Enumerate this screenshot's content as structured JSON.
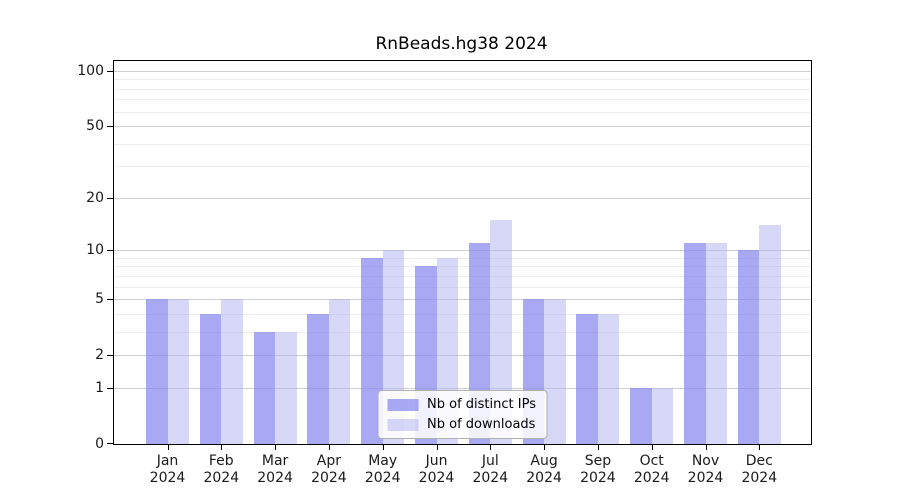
{
  "title": "RnBeads.hg38 2024",
  "chart_data": {
    "type": "bar",
    "title": "RnBeads.hg38 2024",
    "scale": "log10(1+x)",
    "grid": "horizontal",
    "legend_position": "lower center",
    "categories": [
      "Jan",
      "Feb",
      "Mar",
      "Apr",
      "May",
      "Jun",
      "Jul",
      "Aug",
      "Sep",
      "Oct",
      "Nov",
      "Dec"
    ],
    "year_label": "2024",
    "series": [
      {
        "name": "Nb of distinct IPs",
        "color": "#8686ee",
        "alpha": 0.72,
        "values": [
          5,
          4,
          3,
          4,
          9,
          8,
          11,
          5,
          4,
          1,
          11,
          10
        ]
      },
      {
        "name": "Nb of downloads",
        "color": "#b0b0f2",
        "alpha": 0.5,
        "values": [
          5,
          5,
          3,
          5,
          10,
          9,
          15,
          5,
          4,
          1,
          11,
          14
        ]
      }
    ],
    "y_axis": {
      "ticks": [
        0,
        1,
        2,
        5,
        10,
        20,
        50,
        100
      ],
      "minor_gridlines": [
        3,
        4,
        6,
        7,
        8,
        9,
        30,
        40,
        60,
        70,
        80,
        90
      ],
      "top_value": 113
    },
    "colors": {
      "major_grid": "#cfcfcf",
      "minor_grid": "#ededed",
      "axis": "#000000",
      "text": "#1a1a1a",
      "legend_border": "#b0b0b0"
    }
  }
}
